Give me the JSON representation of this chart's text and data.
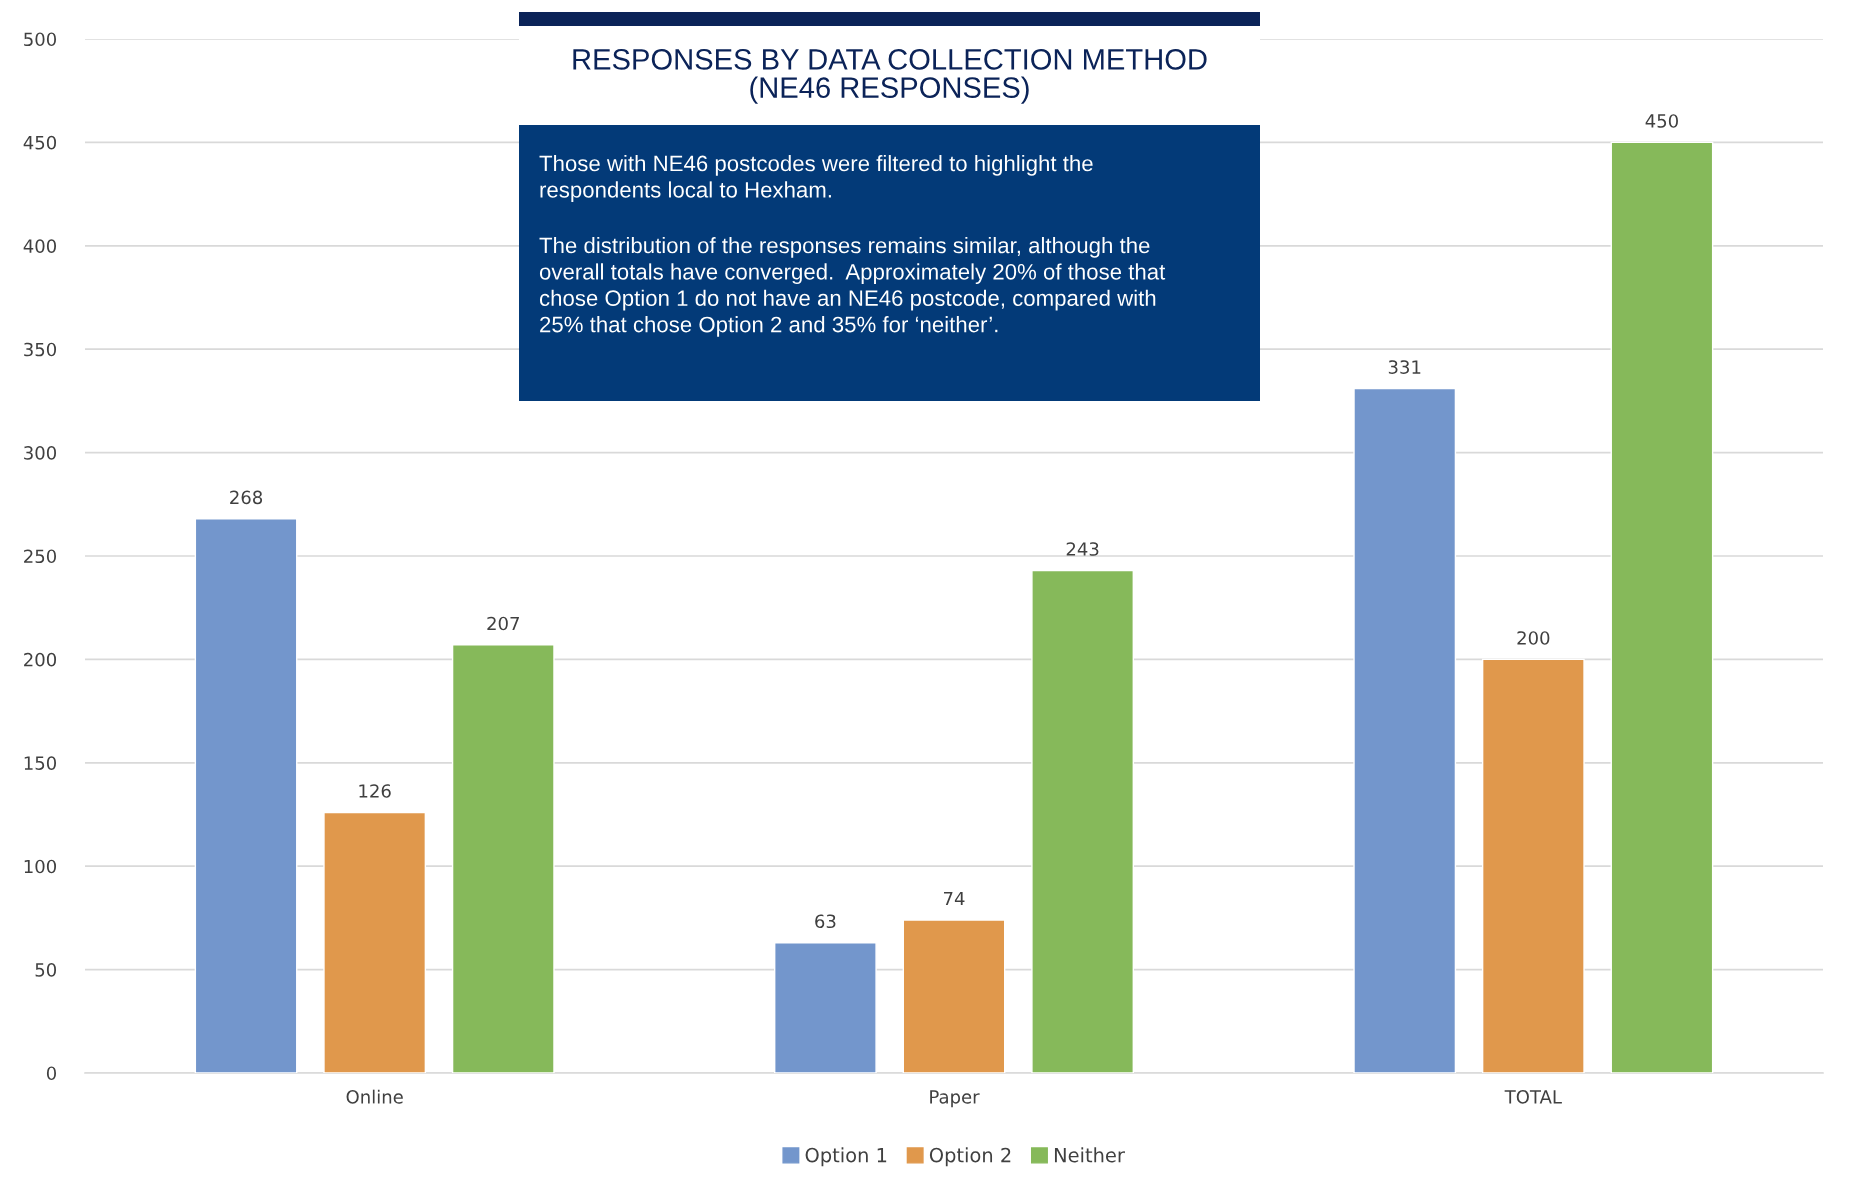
{
  "chart_data": {
    "type": "bar",
    "title": "RESPONSES BY DATA COLLECTION METHOD\n(NE46 RESPONSES)",
    "categories": [
      "Online",
      "Paper",
      "TOTAL"
    ],
    "series": [
      {
        "name": "Option 1",
        "color": "#7396cc",
        "values": [
          268,
          63,
          331
        ]
      },
      {
        "name": "Option 2",
        "color": "#e0984c",
        "values": [
          126,
          74,
          200
        ]
      },
      {
        "name": "Neither",
        "color": "#86b95a",
        "values": [
          207,
          243,
          450
        ]
      }
    ],
    "ylim": [
      0,
      500
    ],
    "yticks": [
      0,
      50,
      100,
      150,
      200,
      250,
      300,
      350,
      400,
      450,
      500
    ],
    "grid": "y",
    "legend": "bottom",
    "data_labels": true,
    "annotations": [
      "Those with NE46 postcodes were filtered to highlight the\nrespondents local to Hexham.",
      "The distribution of the responses remains similar, although the\noverall totals have converged.  Approximately 20% of those that\nchose Option 1 do not have an NE46 postcode, compared with\n25% that chose Option 2 and 35% for ‘neither’."
    ]
  }
}
